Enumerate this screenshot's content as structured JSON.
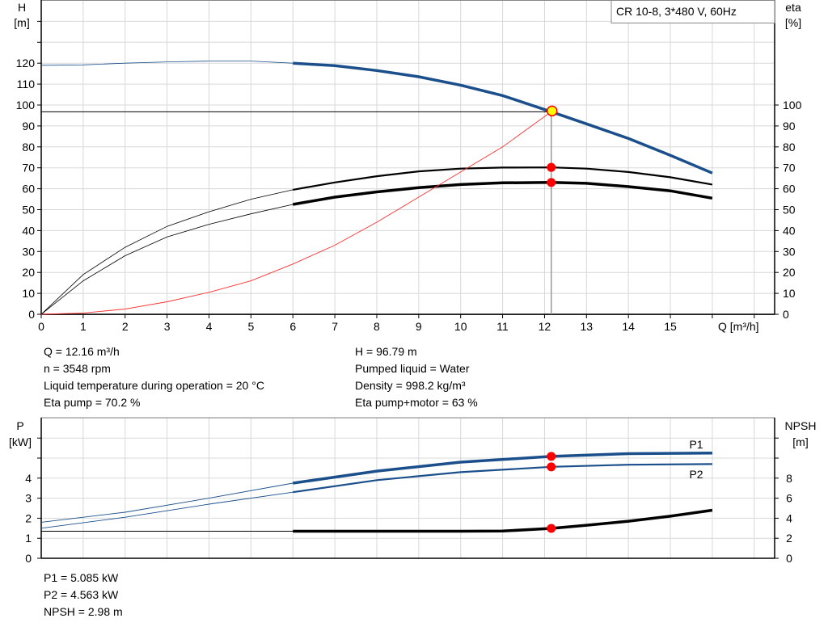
{
  "chart_data": [
    {
      "type": "line",
      "title_box": "CR 10-8, 3*480 V, 60Hz",
      "xlabel": "Q [m³/h]",
      "ylabel_left": [
        "H",
        "[m]"
      ],
      "ylabel_right": [
        "eta",
        "[%]"
      ],
      "xlim": [
        0,
        17
      ],
      "ylim": [
        0,
        150
      ],
      "x_ticks": [
        0,
        1,
        2,
        3,
        4,
        5,
        6,
        7,
        8,
        9,
        10,
        11,
        12,
        13,
        14,
        15
      ],
      "y_left_ticks": [
        0,
        10,
        20,
        30,
        40,
        50,
        60,
        70,
        80,
        90,
        100,
        110,
        120
      ],
      "y_right_ticks": [
        0,
        10,
        20,
        30,
        40,
        50,
        60,
        70,
        80,
        90,
        100
      ],
      "grid": true,
      "series": [
        {
          "key": "H",
          "color": "#1a4f8b",
          "x": [
            0,
            1,
            2,
            3,
            4,
            4.5,
            5,
            6,
            7,
            8,
            9,
            10,
            11,
            12.16,
            13,
            14,
            15,
            16
          ],
          "y": [
            119,
            119.2,
            120,
            120.6,
            121,
            121.1,
            121,
            120,
            118.8,
            116.5,
            113.5,
            109.5,
            104.5,
            96.79,
            91,
            84,
            76,
            67.5
          ]
        },
        {
          "key": "eta_pump",
          "color": "#000000",
          "x": [
            0,
            1,
            2,
            3,
            4,
            5,
            6,
            7,
            8,
            9,
            10,
            11,
            12.16,
            13,
            14,
            15,
            16
          ],
          "y": [
            0,
            19,
            32,
            42,
            49,
            55,
            59.5,
            63,
            66,
            68.3,
            69.6,
            70.1,
            70.2,
            69.6,
            68,
            65.5,
            62
          ]
        },
        {
          "key": "eta_pump_motor",
          "color": "#000000",
          "x": [
            0,
            1,
            2,
            3,
            4,
            5,
            6,
            7,
            8,
            9,
            10,
            11,
            12.16,
            13,
            14,
            15,
            16
          ],
          "y": [
            0,
            16,
            28,
            37,
            43,
            48,
            52.5,
            56,
            58.5,
            60.5,
            62,
            62.8,
            63,
            62.6,
            61,
            59,
            55.5
          ]
        },
        {
          "key": "system",
          "color": "#ff3030",
          "x": [
            0,
            1,
            2,
            3,
            4,
            5,
            6,
            7,
            8,
            9,
            10,
            11,
            12.16
          ],
          "y": [
            0,
            0.6,
            2.5,
            6,
            10.5,
            16,
            24,
            33,
            44,
            56,
            68,
            80,
            96.79
          ]
        }
      ],
      "duty_point": {
        "Q": 12.16,
        "H": 96.79,
        "eta_pump": 70.2,
        "eta_pump_motor": 63
      }
    },
    {
      "type": "line",
      "ylabel_left": [
        "P",
        "[kW]"
      ],
      "ylabel_right": [
        "NPSH",
        "[m]"
      ],
      "xlim": [
        0,
        17
      ],
      "ylim": [
        0,
        7
      ],
      "y_left_ticks": [
        0,
        1,
        2,
        3,
        4
      ],
      "y_right_ticks": [
        0,
        2,
        4,
        6,
        8
      ],
      "grid": true,
      "series": [
        {
          "name": "P1",
          "color": "#1a4f8b",
          "x": [
            0,
            2,
            4,
            6,
            8,
            10,
            12.16,
            14,
            16
          ],
          "y": [
            1.8,
            2.3,
            3.0,
            3.75,
            4.35,
            4.8,
            5.085,
            5.22,
            5.25
          ]
        },
        {
          "name": "P2",
          "color": "#1a4f8b",
          "x": [
            0,
            2,
            4,
            6,
            8,
            10,
            12.16,
            14,
            16
          ],
          "y": [
            1.5,
            2.05,
            2.7,
            3.3,
            3.9,
            4.3,
            4.563,
            4.67,
            4.7
          ]
        },
        {
          "key": "NPSH",
          "color": "#000000",
          "x": [
            0,
            2,
            4,
            6,
            8,
            10,
            11,
            12.16,
            13,
            14,
            15,
            16
          ],
          "y": [
            2.7,
            2.7,
            2.7,
            2.7,
            2.7,
            2.7,
            2.72,
            2.98,
            3.3,
            3.7,
            4.2,
            4.8
          ]
        }
      ],
      "duty_point": {
        "Q": 12.16,
        "P1": 5.085,
        "P2": 4.563,
        "NPSH": 2.98
      }
    }
  ],
  "info_top": {
    "left": [
      "Q = 12.16 m³/h",
      "n = 3548 rpm",
      "Liquid temperature during operation = 20 °C",
      "Eta pump = 70.2 %"
    ],
    "right": [
      "H = 96.79 m",
      "Pumped liquid = Water",
      "Density = 998.2 kg/m³",
      "Eta pump+motor = 63 %"
    ]
  },
  "info_bottom": [
    "P1 = 5.085 kW",
    "P2 = 4.563 kW",
    "NPSH = 2.98 m"
  ],
  "colors": {
    "curve_blue": "#1a4f8b",
    "duty_marker": "#ff0000",
    "duty_head_marker": "#ffff00",
    "grid": "#d8d8d8"
  }
}
